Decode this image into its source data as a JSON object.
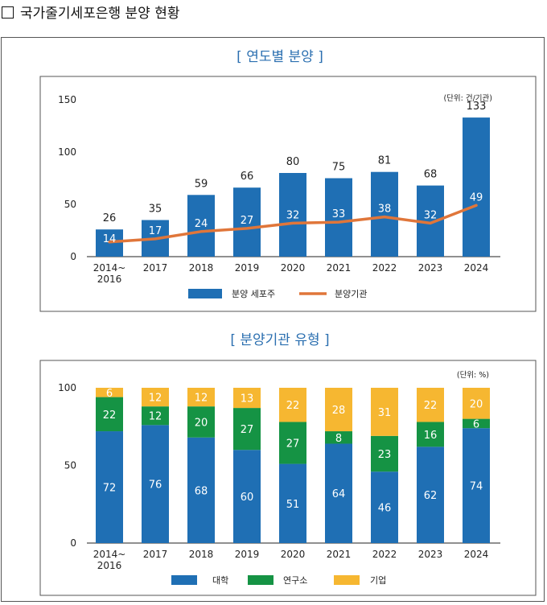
{
  "page_heading": "국가줄기세포은행 분양 현황",
  "chart_data": [
    {
      "type": "bar",
      "title": "[ 연도별 분양 ]",
      "unit_note": "(단위: 건/기관)",
      "categories": [
        "2014~\n2016",
        "2017",
        "2018",
        "2019",
        "2020",
        "2021",
        "2022",
        "2023",
        "2024"
      ],
      "ylim": [
        0,
        150
      ],
      "yticks": [
        "0",
        "50",
        "100",
        "150"
      ],
      "grid": false,
      "legend_position": "bottom",
      "series": [
        {
          "name": "분양 세포주",
          "kind": "bar",
          "color": "#1f6fb4",
          "values": [
            26,
            35,
            59,
            66,
            80,
            75,
            81,
            68,
            133
          ]
        },
        {
          "name": "분양기관",
          "kind": "line",
          "color": "#e0763a",
          "values": [
            14,
            17,
            24,
            27,
            32,
            33,
            38,
            32,
            49
          ]
        }
      ]
    },
    {
      "type": "bar",
      "stacked": true,
      "title": "[ 분양기관 유형 ]",
      "unit_note": "(단위: %)",
      "categories": [
        "2014~\n2016",
        "2017",
        "2018",
        "2019",
        "2020",
        "2021",
        "2022",
        "2023",
        "2024"
      ],
      "ylim": [
        0,
        100
      ],
      "yticks": [
        "0",
        "50",
        "100"
      ],
      "grid": false,
      "legend_position": "bottom",
      "series": [
        {
          "name": "대학",
          "color": "#1f6fb4",
          "values": [
            72,
            76,
            68,
            60,
            51,
            64,
            46,
            62,
            74
          ]
        },
        {
          "name": "연구소",
          "color": "#159344",
          "values": [
            22,
            12,
            20,
            27,
            27,
            8,
            23,
            16,
            6
          ]
        },
        {
          "name": "기업",
          "color": "#f6b731",
          "values": [
            6,
            12,
            12,
            13,
            22,
            28,
            31,
            22,
            20
          ]
        }
      ]
    }
  ]
}
